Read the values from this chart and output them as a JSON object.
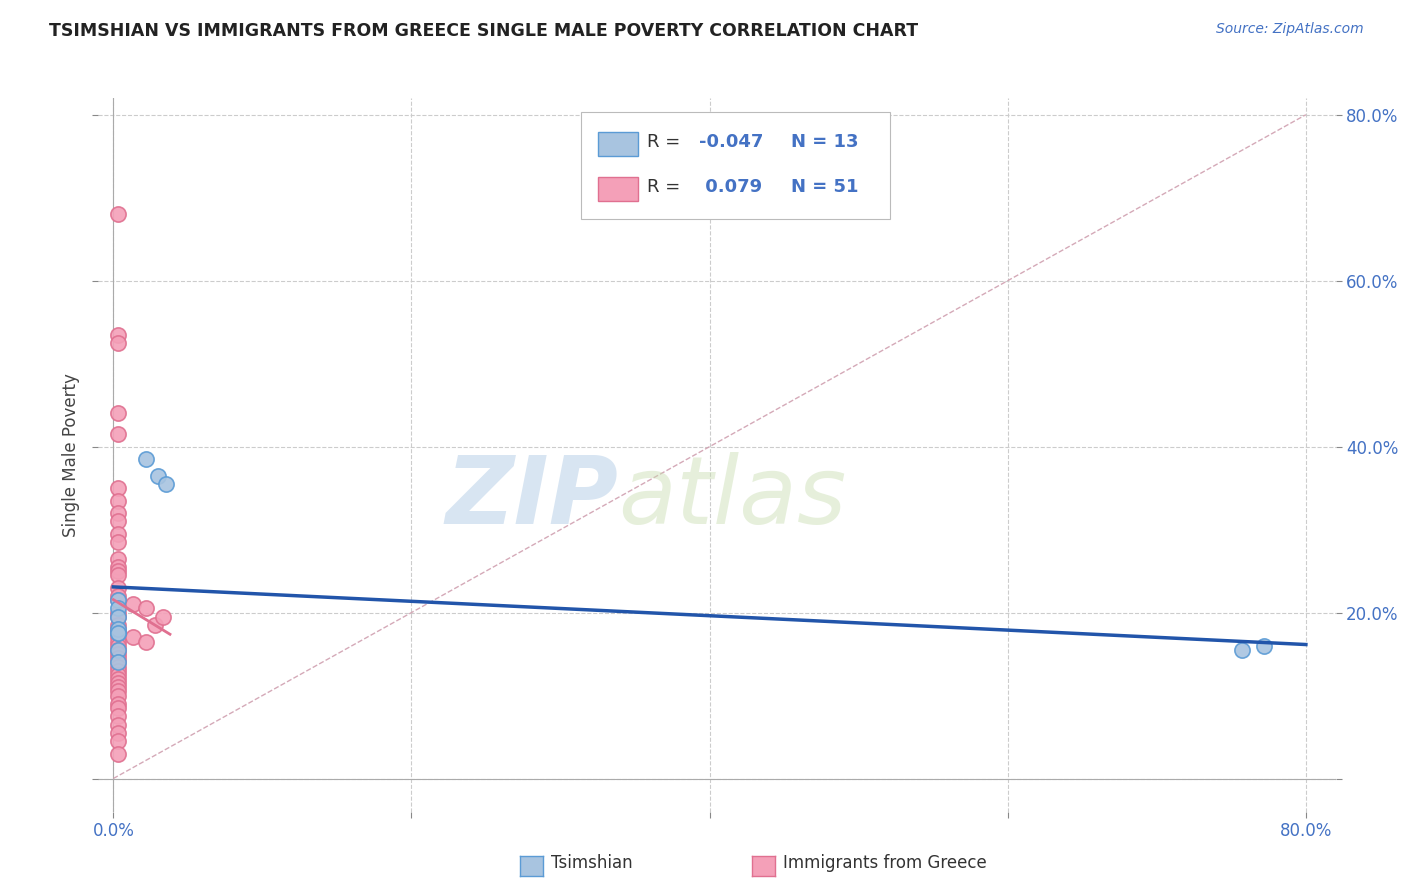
{
  "title": "TSIMSHIAN VS IMMIGRANTS FROM GREECE SINGLE MALE POVERTY CORRELATION CHART",
  "source": "Source: ZipAtlas.com",
  "ylabel": "Single Male Poverty",
  "xlim": [
    -0.01,
    0.82
  ],
  "ylim": [
    -0.04,
    0.82
  ],
  "grid_yticks": [
    0.0,
    0.2,
    0.4,
    0.6,
    0.8
  ],
  "grid_xticks": [
    0.0,
    0.2,
    0.4,
    0.6,
    0.8
  ],
  "r_tsimshian": -0.047,
  "n_tsimshian": 13,
  "r_greece": 0.079,
  "n_greece": 51,
  "tsimshian_color": "#a8c4e0",
  "greece_color": "#f4a0b8",
  "tsimshian_edge": "#5b9bd5",
  "greece_edge": "#e07090",
  "trendline_tsimshian_color": "#2255aa",
  "trendline_greece_color": "#e07090",
  "diagonal_color": "#d0a0b0",
  "background_color": "#ffffff",
  "grid_color": "#cccccc",
  "text_blue": "#4472c4",
  "text_dark": "#333333",
  "watermark_color": "#daeaf5",
  "tsimshian_x": [
    0.022,
    0.03,
    0.035,
    0.003,
    0.003,
    0.003,
    0.003,
    0.003,
    0.003,
    0.003,
    0.003,
    0.757,
    0.772
  ],
  "tsimshian_y": [
    0.385,
    0.365,
    0.355,
    0.215,
    0.205,
    0.175,
    0.195,
    0.18,
    0.175,
    0.155,
    0.14,
    0.155,
    0.16
  ],
  "greece_x": [
    0.003,
    0.003,
    0.003,
    0.003,
    0.003,
    0.003,
    0.003,
    0.003,
    0.003,
    0.003,
    0.003,
    0.003,
    0.003,
    0.003,
    0.003,
    0.003,
    0.003,
    0.003,
    0.003,
    0.003,
    0.003,
    0.003,
    0.003,
    0.003,
    0.003,
    0.003,
    0.003,
    0.003,
    0.003,
    0.003,
    0.003,
    0.003,
    0.003,
    0.003,
    0.003,
    0.003,
    0.003,
    0.003,
    0.003,
    0.003,
    0.003,
    0.003,
    0.003,
    0.003,
    0.003,
    0.013,
    0.013,
    0.022,
    0.022,
    0.028,
    0.033
  ],
  "greece_y": [
    0.68,
    0.535,
    0.525,
    0.44,
    0.415,
    0.35,
    0.335,
    0.32,
    0.31,
    0.295,
    0.285,
    0.265,
    0.255,
    0.25,
    0.245,
    0.23,
    0.22,
    0.215,
    0.2,
    0.195,
    0.185,
    0.18,
    0.175,
    0.17,
    0.165,
    0.16,
    0.155,
    0.15,
    0.145,
    0.14,
    0.135,
    0.13,
    0.125,
    0.12,
    0.115,
    0.11,
    0.105,
    0.1,
    0.09,
    0.085,
    0.075,
    0.065,
    0.055,
    0.045,
    0.03,
    0.21,
    0.17,
    0.205,
    0.165,
    0.185,
    0.195
  ]
}
